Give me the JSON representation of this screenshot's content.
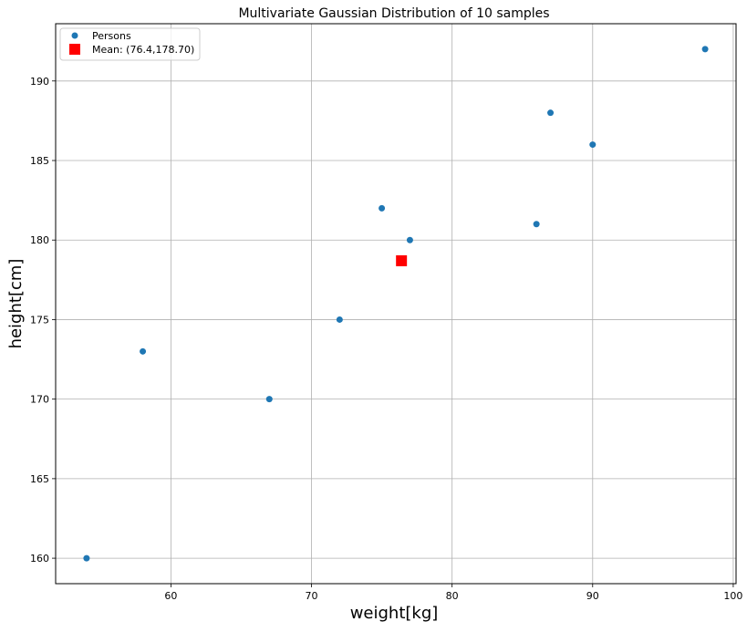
{
  "chart_data": {
    "type": "scatter",
    "title": "Multivariate Gaussian Distribution of 10 samples",
    "xlabel": "weight[kg]",
    "ylabel": "height[cm]",
    "xlim": [
      51.8,
      100.2
    ],
    "ylim": [
      158.4,
      193.6
    ],
    "xticks": [
      60,
      70,
      80,
      90,
      100
    ],
    "yticks": [
      160,
      165,
      170,
      175,
      180,
      185,
      190
    ],
    "grid": true,
    "legend_position": "top-left",
    "series": [
      {
        "name": "Persons",
        "marker": "circle",
        "color": "#1f77b4",
        "points": [
          {
            "x": 54,
            "y": 160
          },
          {
            "x": 58,
            "y": 173
          },
          {
            "x": 67,
            "y": 170
          },
          {
            "x": 72,
            "y": 175
          },
          {
            "x": 75,
            "y": 182
          },
          {
            "x": 77,
            "y": 180
          },
          {
            "x": 86,
            "y": 181
          },
          {
            "x": 87,
            "y": 188
          },
          {
            "x": 90,
            "y": 186
          },
          {
            "x": 98,
            "y": 192
          }
        ]
      },
      {
        "name": "Mean: (76.4,178.70)",
        "marker": "square",
        "color": "#ff0000",
        "points": [
          {
            "x": 76.4,
            "y": 178.7
          }
        ]
      }
    ]
  }
}
